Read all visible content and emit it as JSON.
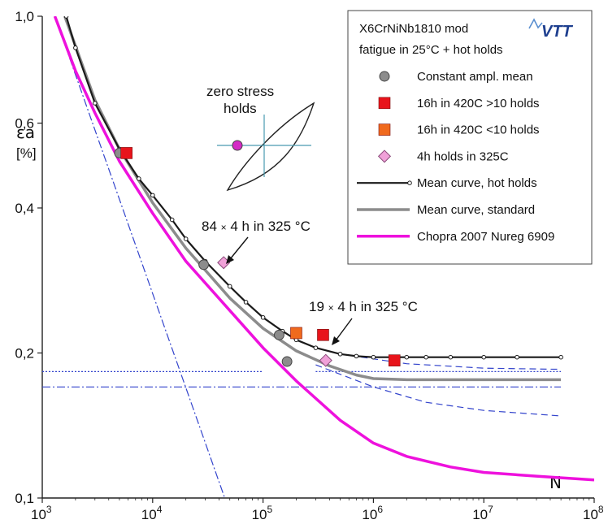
{
  "chart_data": {
    "type": "line",
    "x_scale": "log",
    "y_scale": "log",
    "xlim": [
      1000,
      100000000
    ],
    "ylim": [
      0.1,
      1.0
    ],
    "grid": false,
    "legend_position": "top-right",
    "xlabel": "N",
    "ylabel": "εa",
    "ylabel_unit": "[%]",
    "x_ticks": [
      {
        "value": 1000,
        "base": "10",
        "exp": "3"
      },
      {
        "value": 10000,
        "base": "10",
        "exp": "4"
      },
      {
        "value": 100000,
        "base": "10",
        "exp": "5"
      },
      {
        "value": 1000000,
        "base": "10",
        "exp": "6"
      },
      {
        "value": 10000000,
        "base": "10",
        "exp": "7"
      },
      {
        "value": 100000000,
        "base": "10",
        "exp": "8"
      }
    ],
    "y_ticks": [
      {
        "value": 0.1,
        "label": "0,1"
      },
      {
        "value": 0.2,
        "label": "0,2"
      },
      {
        "value": 0.4,
        "label": "0,4"
      },
      {
        "value": 0.6,
        "label": "0,6"
      },
      {
        "value": 1.0,
        "label": "1,0"
      }
    ],
    "legend_title": [
      "X6CrNiNb1810 mod",
      "fatigue in 25°C + hot holds"
    ],
    "legend_logo": "VTT",
    "series": [
      {
        "name": "Constant ampl. mean",
        "kind": "points",
        "marker": "circle",
        "color": "#8c8c8c",
        "points": [
          [
            5000,
            0.52
          ],
          [
            29000,
            0.305
          ],
          [
            140000,
            0.218
          ],
          [
            165000,
            0.192
          ]
        ]
      },
      {
        "name": "16h in 420C >10 holds",
        "kind": "points",
        "marker": "square",
        "color": "#e8141b",
        "points": [
          [
            5800,
            0.52
          ],
          [
            350000,
            0.218
          ],
          [
            1550000,
            0.193
          ]
        ]
      },
      {
        "name": "16h in 420C <10 holds",
        "kind": "points",
        "marker": "square",
        "color": "#f06a1e",
        "points": [
          [
            200000,
            0.22
          ]
        ]
      },
      {
        "name": "4h holds in 325C",
        "kind": "points",
        "marker": "diamond",
        "color": "#f0a0d8",
        "points": [
          [
            44000,
            0.308
          ],
          [
            370000,
            0.193
          ]
        ]
      },
      {
        "name": "Mean curve, hot holds",
        "kind": "line",
        "marker": "small-circle",
        "color": "#1a1a1a",
        "points": [
          [
            1650,
            1.0
          ],
          [
            2000,
            0.86
          ],
          [
            3000,
            0.66
          ],
          [
            5000,
            0.53
          ],
          [
            7500,
            0.46
          ],
          [
            10000,
            0.425
          ],
          [
            15000,
            0.378
          ],
          [
            20000,
            0.345
          ],
          [
            30000,
            0.31
          ],
          [
            50000,
            0.275
          ],
          [
            70000,
            0.255
          ],
          [
            100000,
            0.237
          ],
          [
            150000,
            0.222
          ],
          [
            200000,
            0.213
          ],
          [
            300000,
            0.205
          ],
          [
            500000,
            0.199
          ],
          [
            700000,
            0.197
          ],
          [
            1000000,
            0.196
          ],
          [
            1500000,
            0.196
          ],
          [
            2000000,
            0.196
          ],
          [
            3000000,
            0.196
          ],
          [
            5000000,
            0.196
          ],
          [
            10000000,
            0.196
          ],
          [
            20000000,
            0.196
          ],
          [
            50000000,
            0.196
          ]
        ]
      },
      {
        "name": "Mean curve, standard",
        "kind": "line",
        "color": "#8c8c8c",
        "points": [
          [
            1600,
            1.0
          ],
          [
            3000,
            0.67
          ],
          [
            5000,
            0.53
          ],
          [
            10000,
            0.41
          ],
          [
            20000,
            0.33
          ],
          [
            50000,
            0.26
          ],
          [
            100000,
            0.225
          ],
          [
            200000,
            0.202
          ],
          [
            400000,
            0.188
          ],
          [
            700000,
            0.18
          ],
          [
            1000000,
            0.177
          ],
          [
            2000000,
            0.176
          ],
          [
            50000000,
            0.176
          ]
        ]
      },
      {
        "name": "Chopra 2007 Nureg 6909",
        "kind": "line",
        "color": "#ee11dd",
        "points": [
          [
            1300,
            1.0
          ],
          [
            2000,
            0.77
          ],
          [
            3000,
            0.63
          ],
          [
            5000,
            0.5
          ],
          [
            10000,
            0.39
          ],
          [
            20000,
            0.31
          ],
          [
            50000,
            0.245
          ],
          [
            100000,
            0.205
          ],
          [
            200000,
            0.175
          ],
          [
            500000,
            0.145
          ],
          [
            1000000,
            0.13
          ],
          [
            2000000,
            0.122
          ],
          [
            5000000,
            0.116
          ],
          [
            10000000,
            0.113
          ],
          [
            30000000,
            0.111
          ],
          [
            100000000,
            0.109
          ]
        ]
      }
    ],
    "reference_lines": [
      {
        "style": "dash-dot",
        "color": "#3344cc",
        "points": [
          [
            1300,
            1.0
          ],
          [
            45000,
            0.1
          ]
        ]
      },
      {
        "style": "dash-dot",
        "color": "#3344cc",
        "points": [
          [
            1000,
            0.17
          ],
          [
            50000000,
            0.17
          ]
        ]
      },
      {
        "style": "dotted",
        "color": "#3344cc",
        "points": [
          [
            1000,
            0.183
          ],
          [
            100000,
            0.183
          ]
        ]
      },
      {
        "style": "dotted",
        "color": "#3344cc",
        "points": [
          [
            300000,
            0.183
          ],
          [
            50000000,
            0.183
          ]
        ]
      },
      {
        "style": "dashed",
        "color": "#3344cc",
        "points": [
          [
            500000,
            0.199
          ],
          [
            2000000,
            0.19
          ],
          [
            10000000,
            0.186
          ],
          [
            50000000,
            0.185
          ]
        ]
      },
      {
        "style": "dashed",
        "color": "#3344cc",
        "points": [
          [
            300000,
            0.189
          ],
          [
            1000000,
            0.17
          ],
          [
            3000000,
            0.158
          ],
          [
            10000000,
            0.152
          ],
          [
            50000000,
            0.148
          ]
        ]
      }
    ],
    "annotations": [
      {
        "label": "zero stress",
        "line2": "holds"
      },
      {
        "base": "84 ",
        "mult": "×",
        "rest": " 4 h in 325 °C",
        "target": [
          44000,
          0.308
        ]
      },
      {
        "base": "19 ",
        "mult": "×",
        "rest": " 4 h in 325 °C",
        "target": [
          370000,
          0.193
        ]
      }
    ]
  }
}
